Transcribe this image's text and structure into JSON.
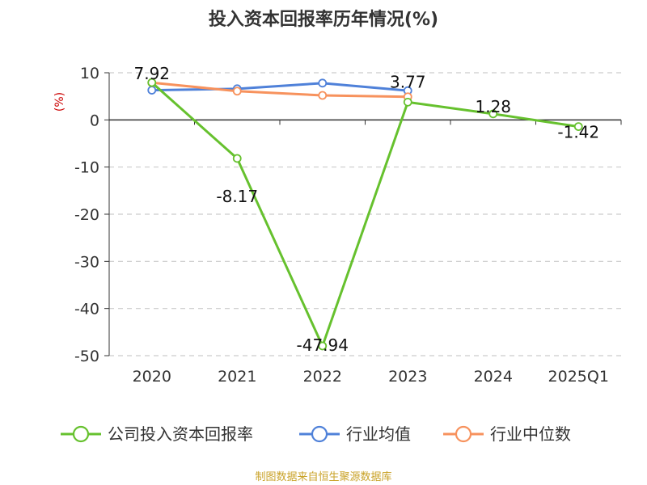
{
  "title": "投入资本回报率历年情况(%)",
  "source": "制图数据来自恒生聚源数据库",
  "colors": {
    "company": "#66c12e",
    "industry_avg": "#4f81d9",
    "industry_median": "#f7925d",
    "grid": "#cccccc",
    "axis": "#333333"
  },
  "chart_data": {
    "type": "line",
    "title": "投入资本回报率历年情况(%)",
    "ylabel": "(%)",
    "xlabel": "",
    "categories": [
      "2020",
      "2021",
      "2022",
      "2023",
      "2024",
      "2025Q1"
    ],
    "ylim": [
      -50,
      10
    ],
    "yticks": [
      10,
      0,
      -10,
      -20,
      -30,
      -40,
      -50
    ],
    "grid": true,
    "legend": "bottom",
    "series": [
      {
        "name": "公司投入资本回报率",
        "key": "company",
        "values": [
          7.92,
          -8.17,
          -47.94,
          3.77,
          1.28,
          -1.42
        ],
        "labels": [
          "7.92",
          "-8.17",
          "-47.94",
          "3.77",
          "1.28",
          "-1.42"
        ]
      },
      {
        "name": "行业均值",
        "key": "industry_avg",
        "values": [
          6.3,
          6.6,
          7.8,
          6.2,
          null,
          null
        ]
      },
      {
        "name": "行业中位数",
        "key": "industry_median",
        "values": [
          7.9,
          6.1,
          5.2,
          4.9,
          null,
          null
        ]
      }
    ]
  }
}
